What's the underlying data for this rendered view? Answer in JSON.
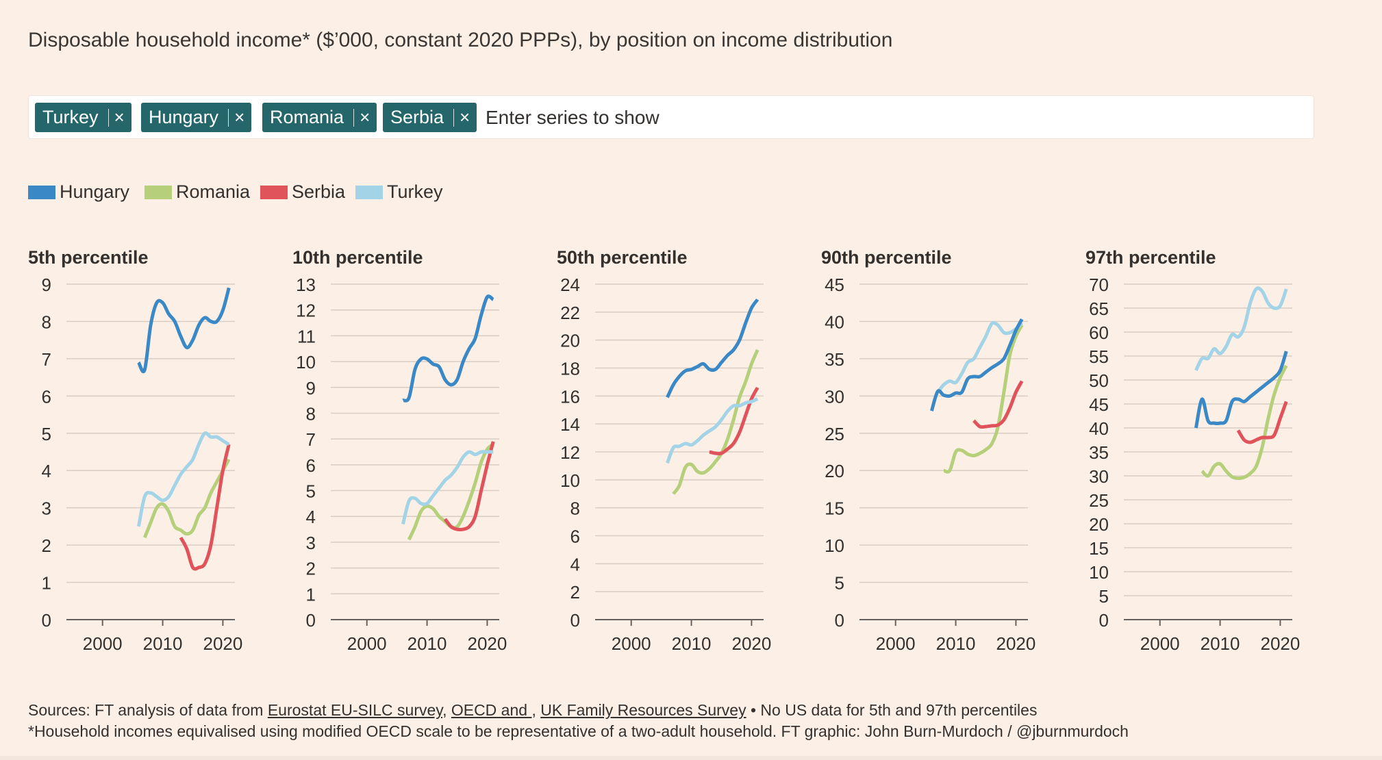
{
  "title": "Disposable household income* ($’000, constant 2020 PPPs), by position on income distribution",
  "selector": {
    "chips": [
      {
        "label": "Turkey",
        "remove_icon": "close-icon"
      },
      {
        "label": "Hungary",
        "remove_icon": "close-icon"
      },
      {
        "label": "Romania",
        "remove_icon": "close-icon"
      },
      {
        "label": "Serbia",
        "remove_icon": "close-icon"
      }
    ],
    "placeholder": "Enter series to show"
  },
  "legend": [
    {
      "name": "Hungary",
      "color": "#3b88c6"
    },
    {
      "name": "Romania",
      "color": "#b5cf7b"
    },
    {
      "name": "Serbia",
      "color": "#e0535a"
    },
    {
      "name": "Turkey",
      "color": "#a3d3e6"
    }
  ],
  "colors": {
    "Hungary": "#3b88c6",
    "Romania": "#b5cf7b",
    "Serbia": "#e0535a",
    "Turkey": "#a3d3e6"
  },
  "chart_data": [
    {
      "type": "line",
      "title": "5th percentile",
      "xlim": [
        1994,
        2022
      ],
      "xticks": [
        2000,
        2010,
        2020
      ],
      "ylim": [
        0,
        9
      ],
      "yticks": [
        0,
        1,
        2,
        3,
        4,
        5,
        6,
        7,
        8,
        9
      ],
      "grid": true,
      "series": [
        {
          "name": "Hungary",
          "x": [
            2006,
            2007,
            2008,
            2009,
            2010,
            2011,
            2012,
            2013,
            2014,
            2015,
            2016,
            2017,
            2018,
            2019,
            2020,
            2021
          ],
          "y": [
            6.9,
            6.7,
            7.9,
            8.5,
            8.5,
            8.2,
            8.0,
            7.6,
            7.3,
            7.5,
            7.9,
            8.1,
            8.0,
            8.0,
            8.3,
            8.9
          ]
        },
        {
          "name": "Romania",
          "x": [
            2007,
            2008,
            2009,
            2010,
            2011,
            2012,
            2013,
            2014,
            2015,
            2016,
            2017,
            2018,
            2019,
            2020,
            2021
          ],
          "y": [
            2.2,
            2.6,
            3.0,
            3.1,
            2.9,
            2.5,
            2.4,
            2.3,
            2.4,
            2.8,
            3.0,
            3.4,
            3.7,
            4.0,
            4.3
          ]
        },
        {
          "name": "Serbia",
          "x": [
            2013,
            2014,
            2015,
            2016,
            2017,
            2018,
            2019,
            2020,
            2021
          ],
          "y": [
            2.2,
            1.9,
            1.4,
            1.4,
            1.5,
            2.0,
            3.0,
            4.0,
            4.7
          ]
        },
        {
          "name": "Turkey",
          "x": [
            2006,
            2007,
            2008,
            2009,
            2010,
            2011,
            2012,
            2013,
            2014,
            2015,
            2016,
            2017,
            2018,
            2019,
            2020,
            2021
          ],
          "y": [
            2.5,
            3.3,
            3.4,
            3.3,
            3.2,
            3.3,
            3.6,
            3.9,
            4.1,
            4.3,
            4.7,
            5.0,
            4.9,
            4.9,
            4.8,
            4.7
          ]
        }
      ]
    },
    {
      "type": "line",
      "title": "10th percentile",
      "xlim": [
        1994,
        2022
      ],
      "xticks": [
        2000,
        2010,
        2020
      ],
      "ylim": [
        0,
        13
      ],
      "yticks": [
        0,
        1,
        2,
        3,
        4,
        5,
        6,
        7,
        8,
        9,
        10,
        11,
        12,
        13
      ],
      "grid": true,
      "series": [
        {
          "name": "Hungary",
          "x": [
            2006,
            2007,
            2008,
            2009,
            2010,
            2011,
            2012,
            2013,
            2014,
            2015,
            2016,
            2017,
            2018,
            2019,
            2020,
            2021
          ],
          "y": [
            8.5,
            8.6,
            9.7,
            10.1,
            10.1,
            9.9,
            9.8,
            9.3,
            9.1,
            9.3,
            10.0,
            10.5,
            10.9,
            11.8,
            12.5,
            12.4
          ]
        },
        {
          "name": "Romania",
          "x": [
            2007,
            2008,
            2009,
            2010,
            2011,
            2012,
            2013,
            2014,
            2015,
            2016,
            2017,
            2018,
            2019,
            2020,
            2021
          ],
          "y": [
            3.1,
            3.6,
            4.2,
            4.4,
            4.3,
            4.0,
            3.8,
            3.6,
            3.6,
            4.0,
            4.6,
            5.3,
            6.1,
            6.6,
            6.8
          ]
        },
        {
          "name": "Serbia",
          "x": [
            2013,
            2014,
            2015,
            2016,
            2017,
            2018,
            2019,
            2020,
            2021
          ],
          "y": [
            3.9,
            3.6,
            3.5,
            3.5,
            3.6,
            4.0,
            5.0,
            6.0,
            6.9
          ]
        },
        {
          "name": "Turkey",
          "x": [
            2006,
            2007,
            2008,
            2009,
            2010,
            2011,
            2012,
            2013,
            2014,
            2015,
            2016,
            2017,
            2018,
            2019,
            2020,
            2021
          ],
          "y": [
            3.7,
            4.6,
            4.7,
            4.5,
            4.5,
            4.8,
            5.1,
            5.4,
            5.6,
            5.9,
            6.3,
            6.5,
            6.4,
            6.5,
            6.5,
            6.5
          ]
        }
      ]
    },
    {
      "type": "line",
      "title": "50th percentile",
      "xlim": [
        1994,
        2022
      ],
      "xticks": [
        2000,
        2010,
        2020
      ],
      "ylim": [
        0,
        24
      ],
      "yticks": [
        0,
        2,
        4,
        6,
        8,
        10,
        12,
        14,
        16,
        18,
        20,
        22,
        24
      ],
      "grid": true,
      "series": [
        {
          "name": "Hungary",
          "x": [
            2006,
            2007,
            2008,
            2009,
            2010,
            2011,
            2012,
            2013,
            2014,
            2015,
            2016,
            2017,
            2018,
            2019,
            2020,
            2021
          ],
          "y": [
            15.9,
            16.8,
            17.4,
            17.8,
            17.9,
            18.1,
            18.3,
            17.9,
            17.9,
            18.4,
            18.9,
            19.3,
            20.0,
            21.2,
            22.3,
            22.9
          ]
        },
        {
          "name": "Romania",
          "x": [
            2007,
            2008,
            2009,
            2010,
            2011,
            2012,
            2013,
            2014,
            2015,
            2016,
            2017,
            2018,
            2019,
            2020,
            2021
          ],
          "y": [
            9.0,
            9.6,
            10.9,
            11.1,
            10.6,
            10.5,
            10.8,
            11.3,
            11.9,
            12.9,
            14.3,
            15.9,
            17.0,
            18.3,
            19.3
          ]
        },
        {
          "name": "Serbia",
          "x": [
            2013,
            2014,
            2015,
            2016,
            2017,
            2018,
            2019,
            2020,
            2021
          ],
          "y": [
            12.0,
            11.9,
            11.9,
            12.2,
            12.6,
            13.4,
            14.6,
            15.8,
            16.6
          ]
        },
        {
          "name": "Turkey",
          "x": [
            2006,
            2007,
            2008,
            2009,
            2010,
            2011,
            2012,
            2013,
            2014,
            2015,
            2016,
            2017,
            2018,
            2019,
            2020,
            2021
          ],
          "y": [
            11.2,
            12.3,
            12.4,
            12.6,
            12.5,
            12.8,
            13.2,
            13.5,
            13.8,
            14.3,
            14.9,
            15.3,
            15.3,
            15.5,
            15.6,
            15.8
          ]
        }
      ]
    },
    {
      "type": "line",
      "title": "90th percentile",
      "xlim": [
        1994,
        2022
      ],
      "xticks": [
        2000,
        2010,
        2020
      ],
      "ylim": [
        0,
        45
      ],
      "yticks": [
        0,
        5,
        10,
        15,
        20,
        25,
        30,
        35,
        40,
        45
      ],
      "grid": true,
      "series": [
        {
          "name": "Hungary",
          "x": [
            2006,
            2007,
            2008,
            2009,
            2010,
            2011,
            2012,
            2013,
            2014,
            2015,
            2016,
            2017,
            2018,
            2019,
            2020,
            2021
          ],
          "y": [
            28.0,
            30.6,
            30.1,
            30.0,
            30.4,
            30.5,
            32.3,
            32.6,
            32.6,
            33.2,
            33.8,
            34.3,
            35.0,
            36.8,
            38.8,
            40.3
          ]
        },
        {
          "name": "Romania",
          "x": [
            2008,
            2009,
            2010,
            2011,
            2012,
            2013,
            2014,
            2015,
            2016,
            2017,
            2018,
            2019,
            2020,
            2021
          ],
          "y": [
            20.0,
            20.0,
            22.5,
            22.7,
            22.2,
            22.0,
            22.3,
            22.8,
            23.6,
            25.8,
            30.5,
            35.5,
            38.0,
            39.5
          ]
        },
        {
          "name": "Serbia",
          "x": [
            2013,
            2014,
            2015,
            2016,
            2017,
            2018,
            2019,
            2020,
            2021
          ],
          "y": [
            26.7,
            25.9,
            25.9,
            26.0,
            26.1,
            26.8,
            28.4,
            30.5,
            32.0
          ]
        },
        {
          "name": "Turkey",
          "x": [
            2007,
            2008,
            2009,
            2010,
            2011,
            2012,
            2013,
            2014,
            2015,
            2016,
            2017,
            2018,
            2019,
            2020,
            2021
          ],
          "y": [
            30.5,
            31.5,
            32.0,
            31.8,
            33.0,
            34.5,
            35.0,
            36.5,
            38.0,
            39.7,
            39.5,
            38.5,
            38.5,
            39.0,
            39.8
          ]
        }
      ]
    },
    {
      "type": "line",
      "title": "97th percentile",
      "xlim": [
        1994,
        2022
      ],
      "xticks": [
        2000,
        2010,
        2020
      ],
      "ylim": [
        0,
        70
      ],
      "yticks": [
        0,
        5,
        10,
        15,
        20,
        25,
        30,
        35,
        40,
        45,
        50,
        55,
        60,
        65,
        70
      ],
      "grid": true,
      "series": [
        {
          "name": "Hungary",
          "x": [
            2006,
            2007,
            2008,
            2009,
            2010,
            2011,
            2012,
            2013,
            2014,
            2015,
            2016,
            2017,
            2018,
            2019,
            2020,
            2021
          ],
          "y": [
            40.0,
            46.0,
            41.5,
            41.0,
            41.0,
            41.5,
            45.5,
            46.0,
            45.5,
            46.5,
            47.5,
            48.5,
            49.5,
            50.5,
            52.0,
            56.0
          ]
        },
        {
          "name": "Romania",
          "x": [
            2007,
            2008,
            2009,
            2010,
            2011,
            2012,
            2013,
            2014,
            2015,
            2016,
            2017,
            2018,
            2019,
            2020,
            2021
          ],
          "y": [
            31.0,
            30.0,
            32.0,
            32.5,
            31.0,
            29.8,
            29.5,
            29.7,
            30.5,
            32.0,
            36.0,
            42.0,
            47.0,
            50.5,
            53.0
          ]
        },
        {
          "name": "Serbia",
          "x": [
            2013,
            2014,
            2015,
            2016,
            2017,
            2018,
            2019,
            2020,
            2021
          ],
          "y": [
            39.5,
            37.5,
            37.0,
            37.5,
            38.0,
            38.0,
            38.5,
            42.0,
            45.5
          ]
        },
        {
          "name": "Turkey",
          "x": [
            2006,
            2007,
            2008,
            2009,
            2010,
            2011,
            2012,
            2013,
            2014,
            2015,
            2016,
            2017,
            2018,
            2019,
            2020,
            2021
          ],
          "y": [
            52.0,
            54.5,
            54.5,
            56.5,
            55.5,
            57.0,
            59.5,
            59.0,
            61.0,
            66.0,
            69.0,
            68.5,
            66.0,
            65.0,
            65.5,
            69.0
          ]
        }
      ]
    }
  ],
  "sources": {
    "prefix": "Sources: FT analysis of data from ",
    "link1": "Eurostat EU-SILC survey",
    "sep1": ", ",
    "link2": "OECD and ",
    "sep2": ", ",
    "link3": "UK Family Resources Survey",
    "suffix": " • No US data for 5th and 97th percentiles",
    "note": "*Household incomes equivalised using modified OECD scale to be representative of a two-adult household. FT graphic: John Burn-Murdoch / @jburnmurdoch"
  }
}
